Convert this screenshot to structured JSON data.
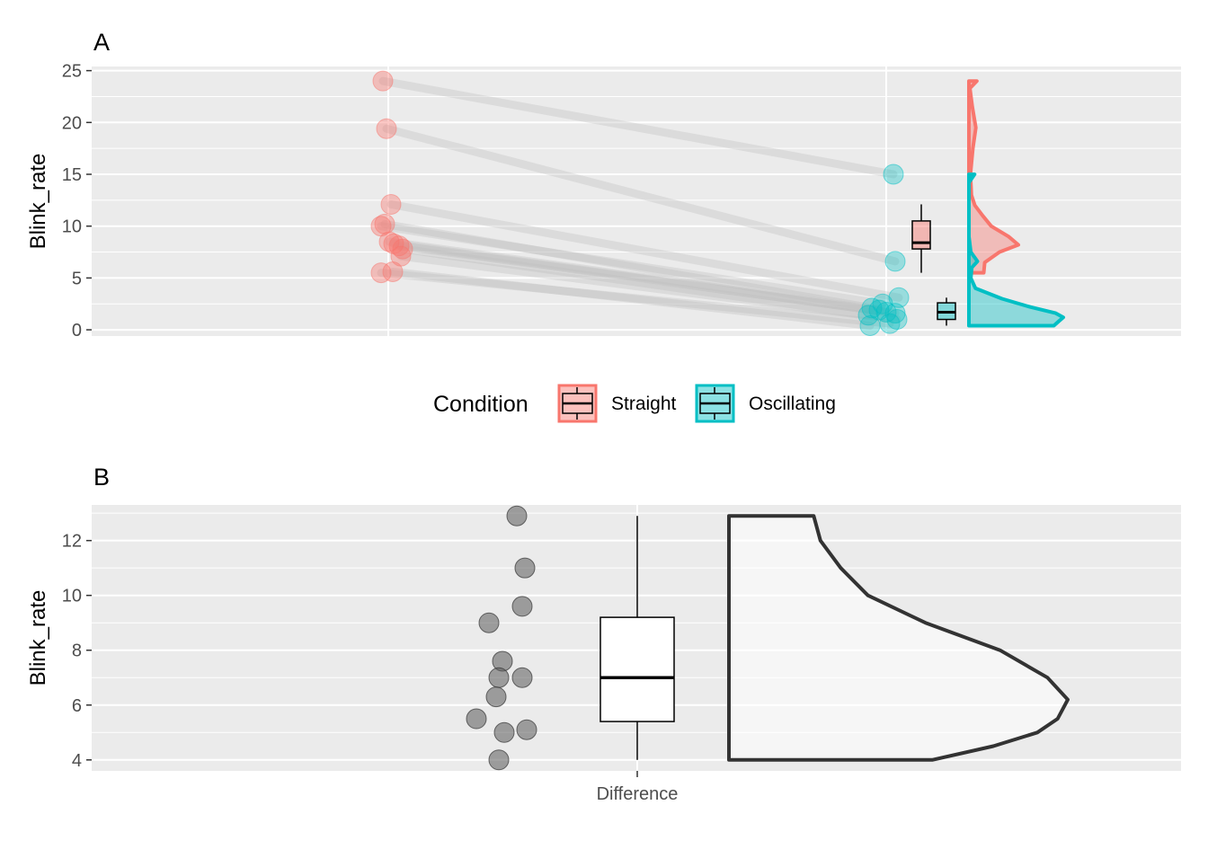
{
  "colors": {
    "straight": "#F8766D",
    "oscillating": "#00BFC4",
    "panel_bg": "#EBEBEB",
    "grid": "#FFFFFF",
    "pair_line": "#BEBEBE",
    "difference_point": "#595959",
    "axis_text": "#4D4D4D"
  },
  "legend": {
    "title": "Condition",
    "items": [
      {
        "label": "Straight",
        "color": "#F8766D"
      },
      {
        "label": "Oscillating",
        "color": "#00BFC4"
      }
    ],
    "position": "bottom-center"
  },
  "chart_data": [
    {
      "panel_tag": "A",
      "type": "scatter",
      "subtype": "raincloud-paired",
      "ylabel": "Blink_rate",
      "ylim": [
        -0.6,
        25.4
      ],
      "yticks": [
        0,
        5,
        10,
        15,
        20,
        25
      ],
      "grid": true,
      "series": [
        {
          "name": "Straight",
          "values": [
            24.0,
            19.4,
            12.1,
            10.0,
            10.2,
            8.5,
            8.3,
            8.1,
            7.8,
            7.1,
            5.5,
            5.6
          ],
          "boxplot": {
            "min": 5.5,
            "q1": 7.8,
            "median": 8.4,
            "q3": 10.5,
            "max": 12.1
          },
          "density": [
            [
              5.5,
              0.3
            ],
            [
              6.5,
              0.32
            ],
            [
              7.5,
              0.62
            ],
            [
              8.2,
              1.0
            ],
            [
              9.0,
              0.8
            ],
            [
              10.0,
              0.45
            ],
            [
              11.0,
              0.28
            ],
            [
              12.0,
              0.12
            ],
            [
              13.0,
              0.05
            ],
            [
              15.0,
              0.03
            ],
            [
              17.5,
              0.08
            ],
            [
              19.5,
              0.14
            ],
            [
              21.5,
              0.07
            ],
            [
              23.3,
              0.02
            ],
            [
              24.0,
              0.16
            ]
          ]
        },
        {
          "name": "Oscillating",
          "values": [
            15.0,
            6.6,
            3.1,
            2.5,
            2.1,
            1.9,
            1.7,
            1.6,
            1.4,
            1.0,
            0.6,
            0.4
          ],
          "boxplot": {
            "min": 0.4,
            "q1": 1.0,
            "median": 1.7,
            "q3": 2.6,
            "max": 3.1
          },
          "density": [
            [
              0.4,
              0.9
            ],
            [
              0.8,
              0.95
            ],
            [
              1.2,
              1.0
            ],
            [
              1.6,
              0.92
            ],
            [
              2.2,
              0.65
            ],
            [
              3.0,
              0.35
            ],
            [
              4.0,
              0.07
            ],
            [
              5.0,
              0.02
            ],
            [
              6.0,
              0.03
            ],
            [
              6.6,
              0.09
            ],
            [
              7.5,
              0.02
            ],
            [
              9.0,
              0.0
            ],
            [
              12.0,
              0.0
            ],
            [
              14.2,
              0.0
            ],
            [
              15.0,
              0.06
            ]
          ]
        }
      ]
    },
    {
      "panel_tag": "B",
      "type": "scatter",
      "subtype": "raincloud-single",
      "categories": [
        "Difference"
      ],
      "ylabel": "Blink_rate",
      "ylim": [
        3.6,
        13.3
      ],
      "yticks": [
        4,
        6,
        8,
        10,
        12
      ],
      "grid": true,
      "values": [
        12.9,
        11.0,
        9.6,
        9.0,
        7.6,
        7.0,
        7.0,
        6.3,
        5.5,
        5.1,
        5.0,
        4.0
      ],
      "boxplot": {
        "min": 4.0,
        "q1": 5.4,
        "median": 7.0,
        "q3": 9.2,
        "max": 12.9
      },
      "density": [
        [
          4.0,
          0.6
        ],
        [
          4.5,
          0.78
        ],
        [
          5.0,
          0.91
        ],
        [
          5.5,
          0.97
        ],
        [
          6.2,
          1.0
        ],
        [
          7.0,
          0.94
        ],
        [
          8.0,
          0.8
        ],
        [
          9.0,
          0.58
        ],
        [
          10.0,
          0.41
        ],
        [
          11.0,
          0.33
        ],
        [
          12.0,
          0.27
        ],
        [
          12.9,
          0.25
        ]
      ]
    }
  ]
}
